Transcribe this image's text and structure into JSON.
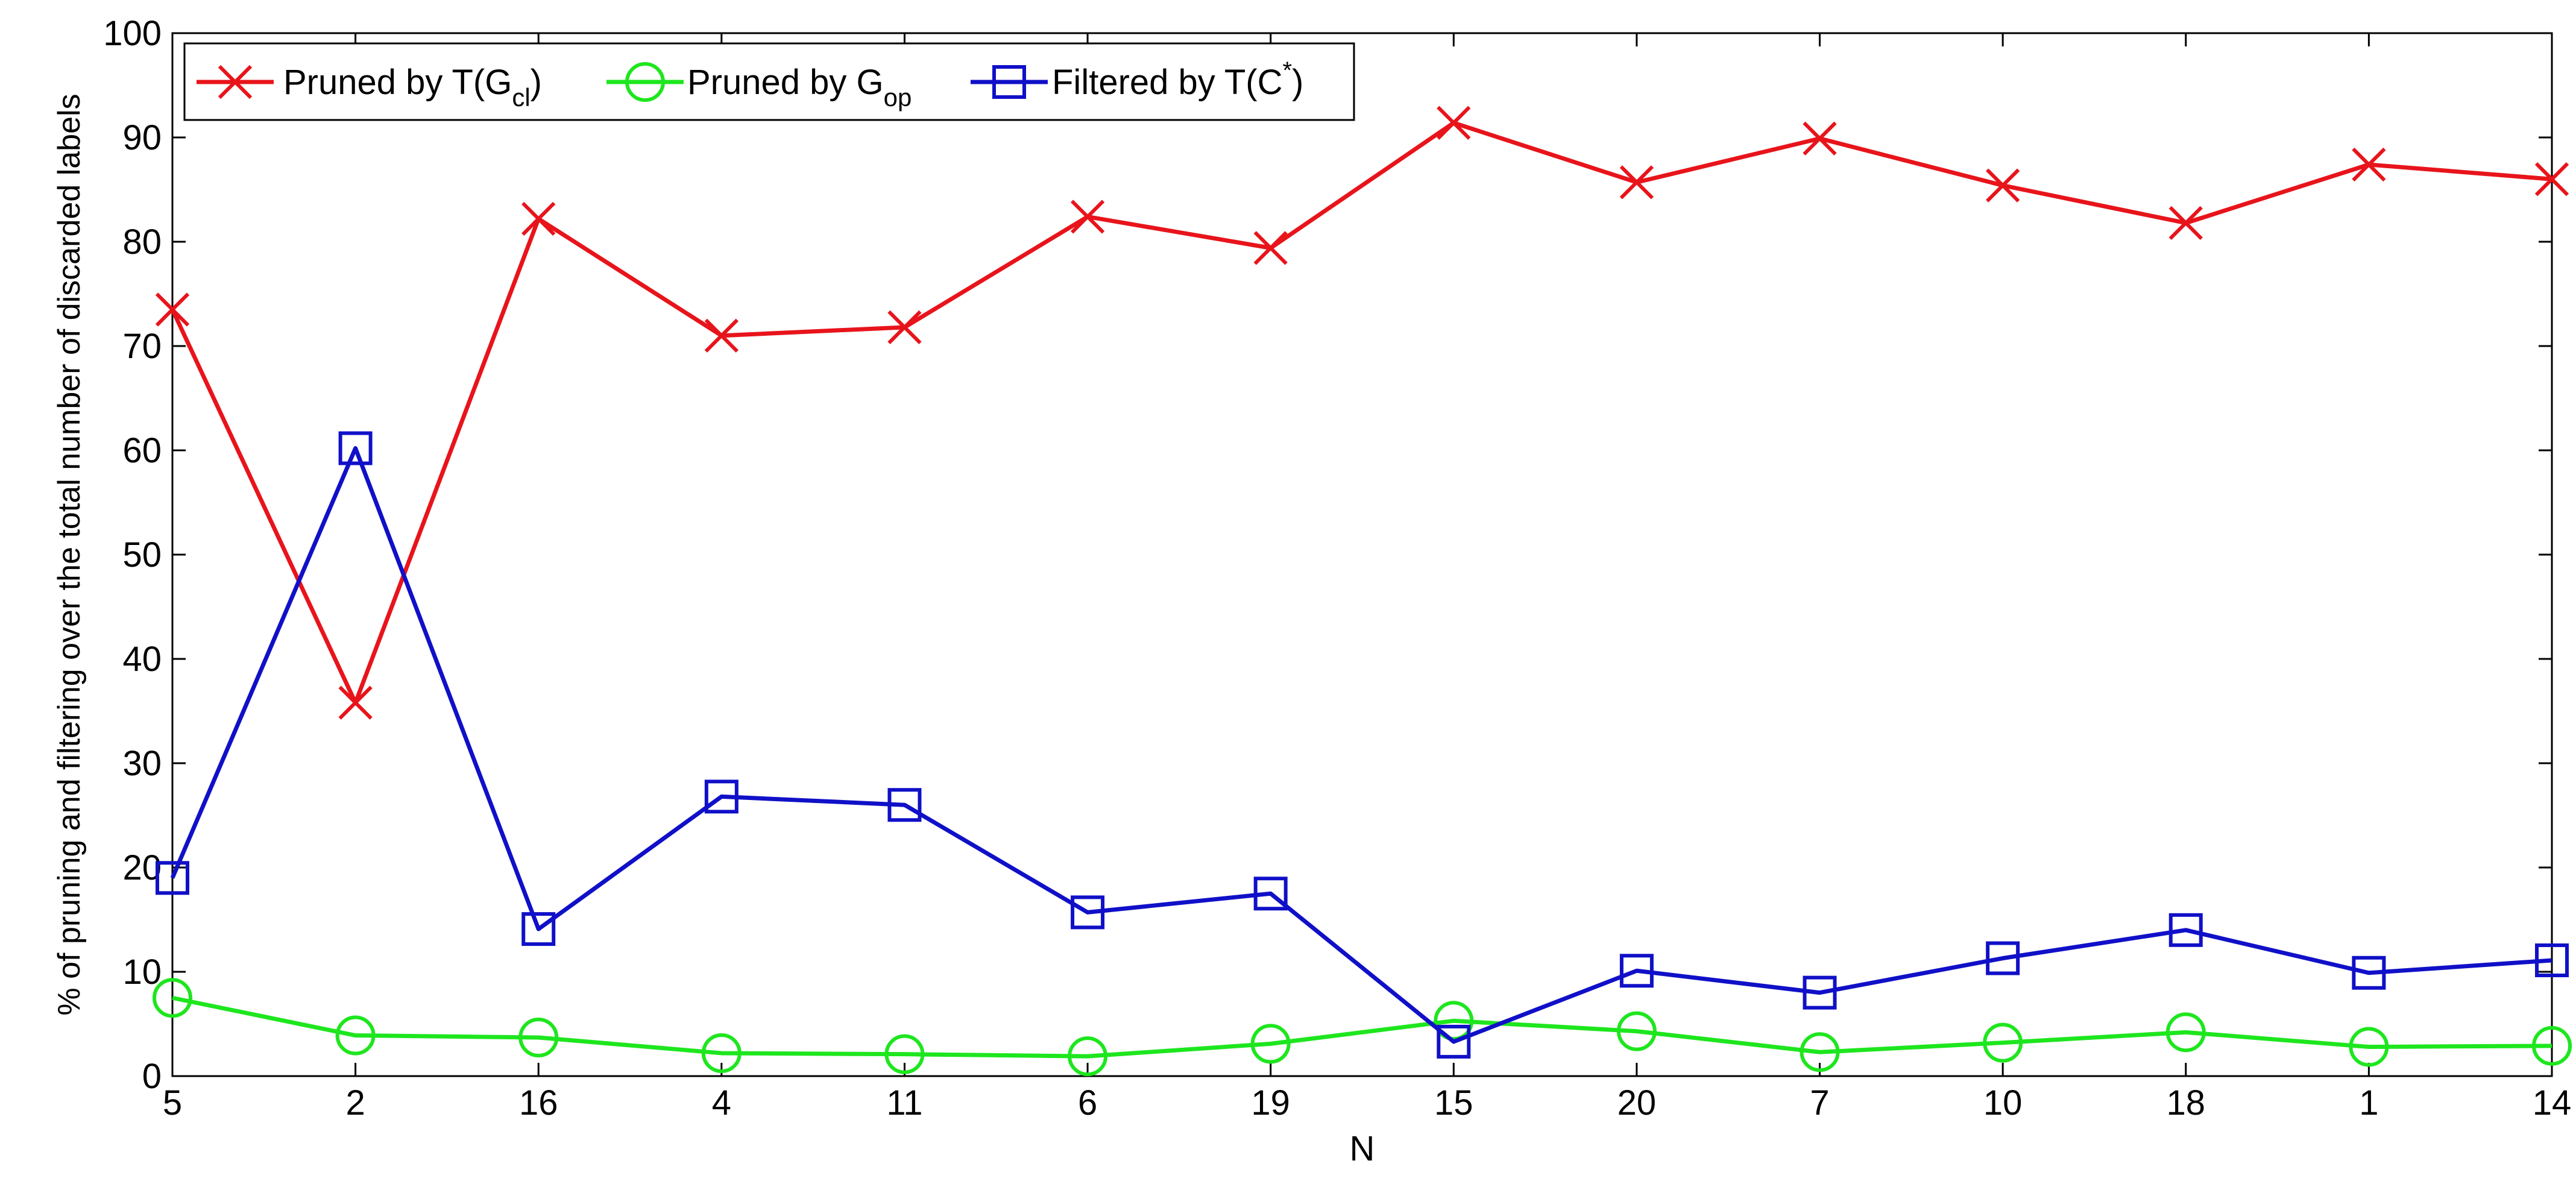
{
  "chart_data": {
    "type": "line",
    "title": "",
    "xlabel": "N",
    "ylabel": "% of pruning and filtering over the total number of discarded labels",
    "categories": [
      "5",
      "2",
      "16",
      "4",
      "11",
      "6",
      "19",
      "15",
      "20",
      "7",
      "10",
      "18",
      "1",
      "14"
    ],
    "ylim": [
      0,
      100
    ],
    "yticks": [
      0,
      10,
      20,
      30,
      40,
      50,
      60,
      70,
      80,
      90,
      100
    ],
    "grid": false,
    "legend_position": "top-left",
    "series": [
      {
        "name": "Pruned by T(G_cl)",
        "legend": {
          "base": "Pruned by T(G",
          "sub": "cl",
          "tail": ")"
        },
        "color": "#e8141b",
        "marker": "x",
        "values": [
          73.5,
          35.8,
          82.2,
          71.0,
          71.8,
          82.4,
          79.4,
          91.4,
          85.7,
          89.9,
          85.4,
          81.8,
          87.4,
          86.0
        ]
      },
      {
        "name": "Pruned by G_op",
        "legend": {
          "base": "Pruned by G",
          "sub": "op",
          "tail": ""
        },
        "color": "#1ee61e",
        "marker": "circle",
        "values": [
          7.5,
          3.9,
          3.7,
          2.2,
          2.1,
          1.9,
          3.1,
          5.3,
          4.3,
          2.3,
          3.2,
          4.2,
          2.8,
          2.9
        ]
      },
      {
        "name": "Filtered by T(C*)",
        "legend": {
          "base": "Filtered by T(C",
          "sup": "*",
          "tail": ")"
        },
        "color": "#1010c8",
        "marker": "square",
        "values": [
          19.0,
          60.2,
          14.1,
          26.8,
          26.0,
          15.7,
          17.5,
          3.3,
          10.1,
          8.0,
          11.3,
          14.0,
          9.9,
          11.1
        ]
      }
    ]
  }
}
